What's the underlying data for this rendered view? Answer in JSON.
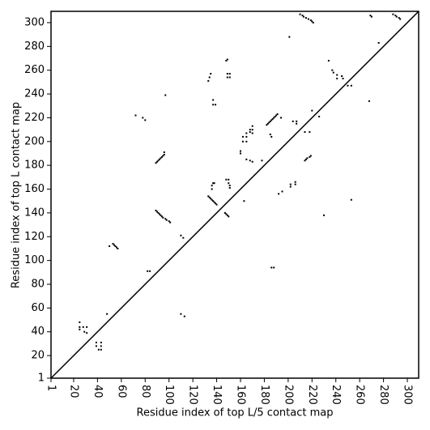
{
  "chart_data": {
    "type": "scatter",
    "xlabel": "Residue index of top L/5 contact map",
    "ylabel": "Residue index of top L contact map",
    "color": "#000000",
    "xlim": [
      1,
      309.5
    ],
    "ylim": [
      1,
      309.5
    ],
    "xticks": [
      1,
      20,
      40,
      60,
      80,
      100,
      120,
      140,
      160,
      180,
      200,
      220,
      240,
      260,
      280,
      300
    ],
    "yticks": [
      1,
      20,
      40,
      60,
      80,
      100,
      120,
      140,
      160,
      180,
      200,
      220,
      240,
      260,
      280,
      300
    ],
    "x": [
      25,
      25,
      25,
      28,
      29,
      31,
      31,
      39,
      39,
      43,
      43,
      41,
      43,
      48,
      50,
      53,
      54,
      55,
      56,
      57,
      82,
      84,
      89,
      90,
      91,
      92,
      93,
      94,
      95,
      97,
      98,
      100,
      101,
      89,
      90,
      91,
      92,
      93,
      94,
      95,
      96,
      96,
      72,
      78,
      80,
      97,
      110,
      112,
      110,
      113,
      133,
      134,
      135,
      136,
      137,
      138,
      139,
      140,
      136,
      137,
      138,
      136,
      133,
      134,
      135,
      137,
      137,
      139,
      147,
      148,
      149,
      150,
      148,
      149,
      149,
      149,
      151,
      151,
      148,
      150,
      150,
      151,
      151,
      160,
      160,
      162,
      162,
      165,
      165,
      165,
      168,
      168,
      170,
      170,
      170,
      165,
      168,
      170,
      178,
      163,
      182,
      183,
      184,
      185,
      186,
      187,
      188,
      189,
      190,
      191,
      186,
      188,
      185,
      186,
      192,
      195,
      194,
      201,
      202,
      202,
      206,
      206,
      204,
      207,
      207,
      210,
      212,
      213,
      215,
      217,
      219,
      220,
      221,
      214,
      215,
      216,
      218,
      219,
      214,
      218,
      220,
      226,
      230,
      234,
      237,
      238,
      241,
      241,
      245,
      246,
      250,
      253,
      253,
      268,
      269,
      270,
      276,
      288,
      290,
      291,
      293,
      294
    ],
    "values": [
      48,
      44,
      42,
      44,
      40,
      44,
      39,
      31,
      28,
      31,
      28,
      25,
      25,
      55,
      112,
      114,
      113,
      112,
      111,
      110,
      91,
      91,
      142,
      141,
      140,
      139,
      138,
      137,
      136,
      135,
      134,
      133,
      132,
      182,
      183,
      184,
      185,
      186,
      187,
      188,
      189,
      191,
      222,
      220,
      218,
      239,
      121,
      119,
      55,
      53,
      154,
      153,
      152,
      151,
      150,
      149,
      148,
      147,
      163,
      165,
      165,
      160,
      251,
      254,
      257,
      235,
      231,
      231,
      140,
      139,
      138,
      137,
      268,
      269,
      257,
      254,
      257,
      254,
      168,
      168,
      165,
      163,
      161,
      190,
      192,
      200,
      204,
      200,
      204,
      207,
      208,
      210,
      207,
      210,
      213,
      185,
      184,
      183,
      184,
      150,
      214,
      215,
      216,
      217,
      218,
      219,
      220,
      221,
      222,
      223,
      94,
      94,
      206,
      204,
      156,
      158,
      220,
      288,
      162,
      164,
      164,
      166,
      217,
      217,
      215,
      307,
      306,
      305,
      304,
      303,
      302,
      301,
      300,
      184,
      185,
      186,
      187,
      188,
      208,
      208,
      226,
      221,
      138,
      268,
      260,
      258,
      256,
      253,
      255,
      253,
      247,
      247,
      151,
      234,
      306,
      305,
      283,
      307,
      306,
      305,
      304,
      303
    ]
  }
}
